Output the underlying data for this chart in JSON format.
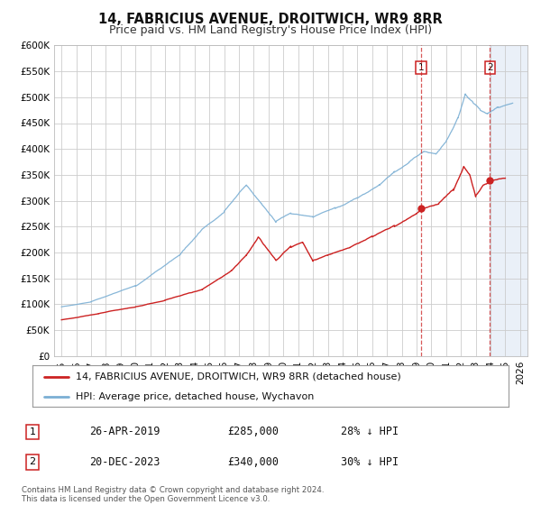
{
  "title": "14, FABRICIUS AVENUE, DROITWICH, WR9 8RR",
  "subtitle": "Price paid vs. HM Land Registry's House Price Index (HPI)",
  "ylim": [
    0,
    600000
  ],
  "xlim": [
    1994.5,
    2026.5
  ],
  "yticks": [
    0,
    50000,
    100000,
    150000,
    200000,
    250000,
    300000,
    350000,
    400000,
    450000,
    500000,
    550000,
    600000
  ],
  "ytick_labels": [
    "£0",
    "£50K",
    "£100K",
    "£150K",
    "£200K",
    "£250K",
    "£300K",
    "£350K",
    "£400K",
    "£450K",
    "£500K",
    "£550K",
    "£600K"
  ],
  "xticks": [
    1995,
    1996,
    1997,
    1998,
    1999,
    2000,
    2001,
    2002,
    2003,
    2004,
    2005,
    2006,
    2007,
    2008,
    2009,
    2010,
    2011,
    2012,
    2013,
    2014,
    2015,
    2016,
    2017,
    2018,
    2019,
    2020,
    2021,
    2022,
    2023,
    2024,
    2025,
    2026
  ],
  "hpi_color": "#7bafd4",
  "price_color": "#cc2222",
  "bg_color": "#ffffff",
  "plot_bg_color": "#ffffff",
  "grid_color": "#cccccc",
  "shade_color": "#dce6f4",
  "vline1_x": 2019.31,
  "vline2_x": 2023.97,
  "marker1_x": 2019.31,
  "marker1_y": 285000,
  "marker2_x": 2023.97,
  "marker2_y": 340000,
  "legend_label1": "14, FABRICIUS AVENUE, DROITWICH, WR9 8RR (detached house)",
  "legend_label2": "HPI: Average price, detached house, Wychavon",
  "annotation1_label": "1",
  "annotation1_date": "26-APR-2019",
  "annotation1_price": "£285,000",
  "annotation1_pct": "28% ↓ HPI",
  "annotation2_label": "2",
  "annotation2_date": "20-DEC-2023",
  "annotation2_price": "£340,000",
  "annotation2_pct": "30% ↓ HPI",
  "footer": "Contains HM Land Registry data © Crown copyright and database right 2024.\nThis data is licensed under the Open Government Licence v3.0.",
  "title_fontsize": 10.5,
  "subtitle_fontsize": 9,
  "tick_fontsize": 7.5,
  "legend_fontsize": 8,
  "annotation_fontsize": 8.5
}
